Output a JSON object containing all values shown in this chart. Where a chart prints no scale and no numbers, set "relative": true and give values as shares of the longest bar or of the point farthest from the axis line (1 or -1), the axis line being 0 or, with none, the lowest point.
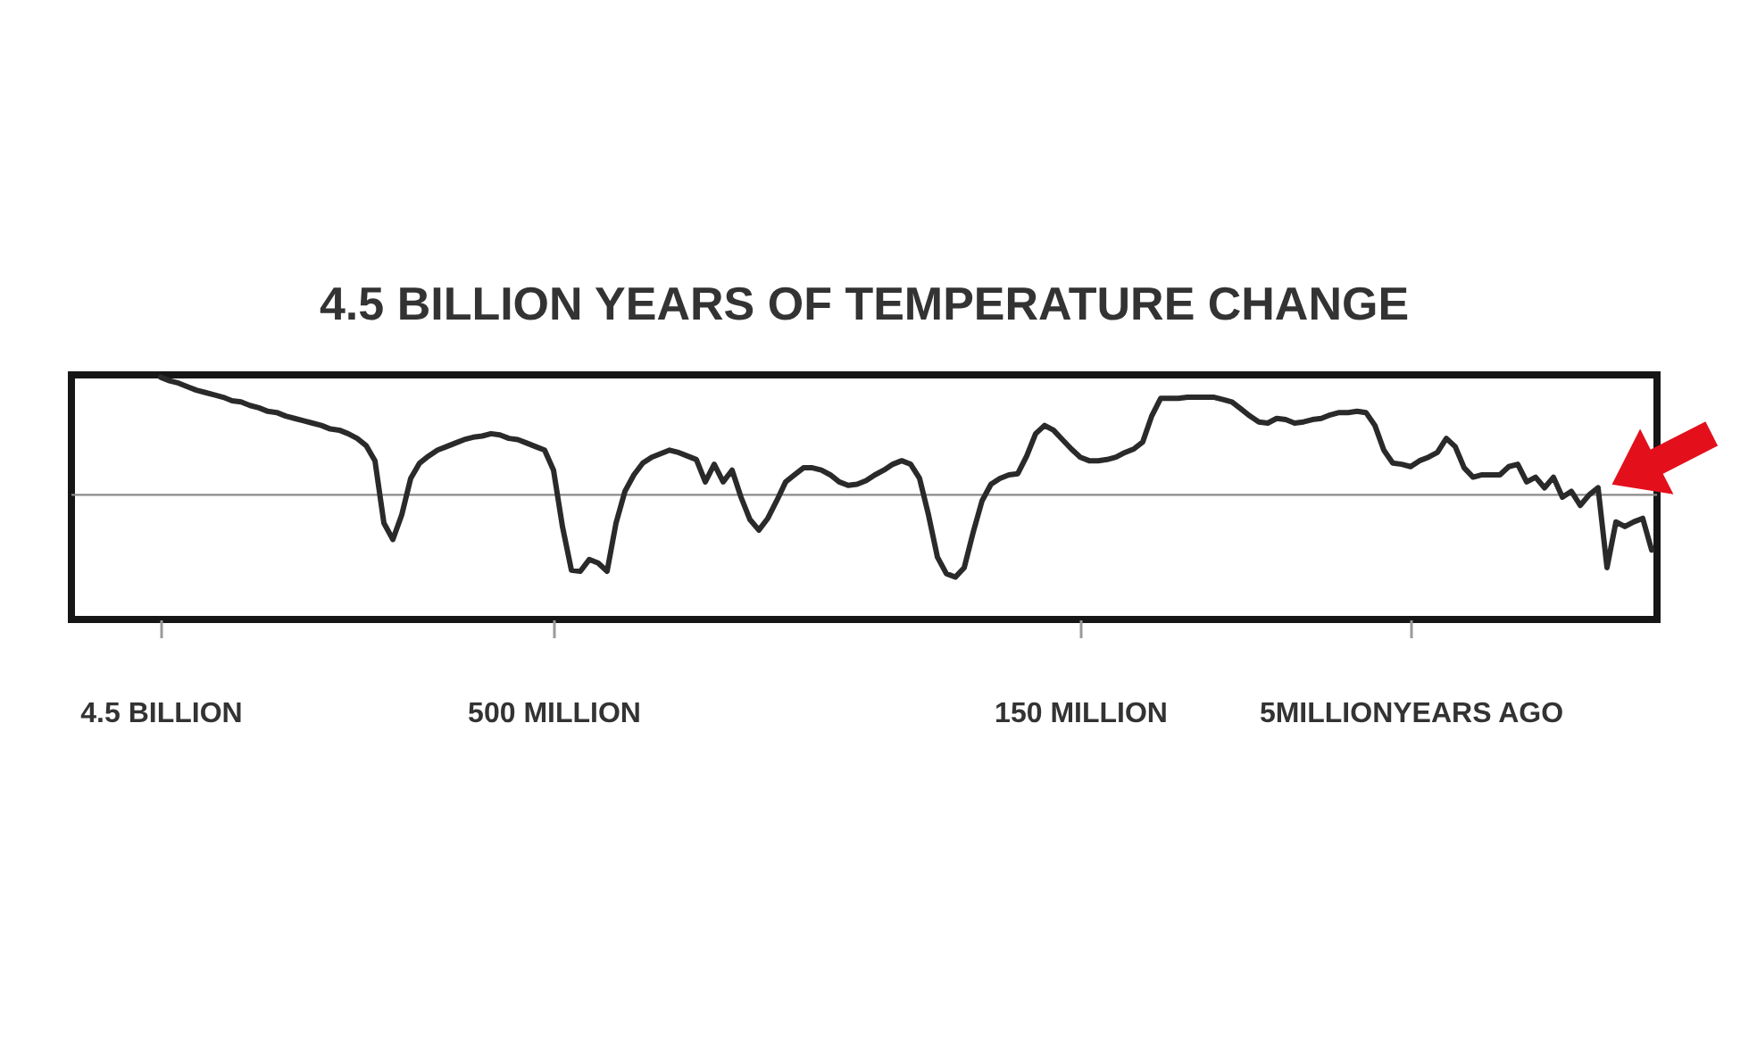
{
  "chart_data": {
    "type": "line",
    "title": "4.5 BILLION YEARS OF TEMPERATURE CHANGE",
    "relative": true,
    "categories": [
      "4.5 BILLION",
      null,
      null,
      null,
      null,
      null,
      null,
      null,
      null,
      null,
      null,
      null,
      null,
      null,
      null,
      null,
      null,
      null,
      null,
      null,
      null,
      null,
      null,
      null,
      null,
      null,
      null,
      null,
      null,
      null,
      null,
      null,
      null,
      null,
      null,
      null,
      null,
      null,
      null,
      null,
      null,
      null,
      null,
      null,
      "500 MILLION",
      null,
      null,
      null,
      null,
      null,
      null,
      null,
      null,
      null,
      null,
      null,
      null,
      null,
      null,
      null,
      null,
      null,
      null,
      null,
      null,
      null,
      null,
      null,
      null,
      null,
      null,
      null,
      null,
      null,
      null,
      null,
      null,
      null,
      null,
      null,
      null,
      null,
      null,
      null,
      null,
      null,
      null,
      null,
      null,
      null,
      null,
      null,
      null,
      null,
      null,
      null,
      null,
      null,
      null,
      null,
      null,
      null,
      null,
      "150 MILLION",
      null,
      null,
      null,
      null,
      null,
      null,
      null,
      null,
      null,
      null,
      null,
      null,
      null,
      null,
      null,
      null,
      null,
      null,
      null,
      null,
      null,
      null,
      null,
      null,
      null,
      null,
      null,
      null,
      null,
      null,
      null,
      null,
      null,
      null,
      null,
      null,
      "5MILLIONYEARS AGO",
      null,
      null,
      null,
      null,
      null,
      null,
      null,
      null,
      null,
      null,
      null,
      null,
      null,
      null,
      null,
      null,
      null,
      null,
      null,
      null,
      null,
      null,
      null,
      null,
      null,
      null,
      null
    ],
    "series": [
      {
        "color": "#2a2a2a",
        "values": [
          1.0,
          0.97,
          0.95,
          0.92,
          0.89,
          0.87,
          0.85,
          0.83,
          0.8,
          0.79,
          0.76,
          0.74,
          0.71,
          0.7,
          0.67,
          0.65,
          0.63,
          0.61,
          0.59,
          0.56,
          0.55,
          0.52,
          0.48,
          0.42,
          0.29,
          -0.24,
          -0.38,
          -0.17,
          0.14,
          0.27,
          0.33,
          0.38,
          0.41,
          0.44,
          0.47,
          0.49,
          0.5,
          0.52,
          0.51,
          0.48,
          0.47,
          0.44,
          0.41,
          0.38,
          0.21,
          -0.27,
          -0.64,
          -0.65,
          -0.55,
          -0.58,
          -0.65,
          -0.24,
          0.03,
          0.17,
          0.27,
          0.32,
          0.35,
          0.38,
          0.36,
          0.33,
          0.3,
          0.11,
          0.26,
          0.11,
          0.21,
          -0.02,
          -0.21,
          -0.3,
          -0.2,
          -0.05,
          0.11,
          0.17,
          0.23,
          0.23,
          0.21,
          0.17,
          0.11,
          0.08,
          0.09,
          0.12,
          0.17,
          0.21,
          0.26,
          0.29,
          0.26,
          0.14,
          -0.17,
          -0.53,
          -0.67,
          -0.7,
          -0.62,
          -0.32,
          -0.05,
          0.09,
          0.14,
          0.17,
          0.18,
          0.33,
          0.52,
          0.59,
          0.55,
          0.47,
          0.39,
          0.32,
          0.29,
          0.29,
          0.3,
          0.32,
          0.36,
          0.39,
          0.45,
          0.67,
          0.82,
          0.82,
          0.82,
          0.83,
          0.83,
          0.83,
          0.83,
          0.81,
          0.79,
          0.73,
          0.67,
          0.62,
          0.61,
          0.65,
          0.64,
          0.61,
          0.62,
          0.64,
          0.65,
          0.68,
          0.7,
          0.7,
          0.71,
          0.7,
          0.59,
          0.38,
          0.27,
          0.26,
          0.24,
          0.29,
          0.32,
          0.36,
          0.48,
          0.41,
          0.23,
          0.15,
          0.17,
          0.17,
          0.17,
          0.24,
          0.26,
          0.11,
          0.15,
          0.06,
          0.15,
          -0.02,
          0.03,
          -0.09,
          0.0,
          0.06,
          -0.62,
          -0.23,
          -0.27,
          -0.23,
          -0.2,
          -0.47
        ]
      }
    ],
    "ref_lines": [
      {
        "axis": "y",
        "value": 0,
        "color": "#8a8a8a"
      }
    ]
  }
}
